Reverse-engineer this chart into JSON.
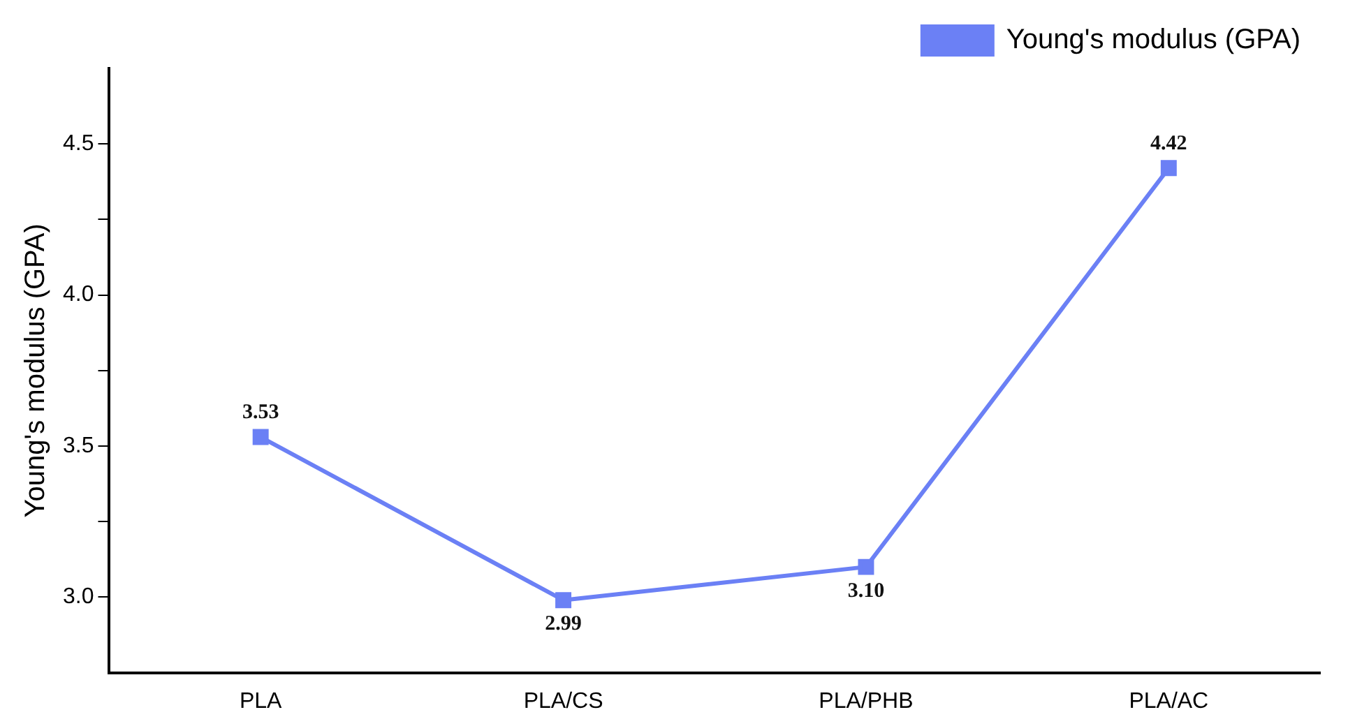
{
  "chart_data": {
    "type": "line",
    "ylabel": "Young's modulus (GPA)",
    "categories": [
      "PLA",
      "PLA/CS",
      "PLA/PHB",
      "PLA/AC"
    ],
    "series": [
      {
        "name": "Young's modulus (GPA)",
        "color": "#6b80f5",
        "values": [
          3.53,
          2.99,
          3.1,
          4.42
        ],
        "value_labels": [
          "3.53",
          "2.99",
          "3.10",
          "4.42"
        ]
      }
    ],
    "ylim": [
      2.75,
      4.75
    ],
    "yticks": [
      {
        "value": 3,
        "label": "3.0"
      },
      {
        "value": 3.25,
        "label": null
      },
      3.5,
      {
        "value": 3.75,
        "label": null
      },
      {
        "value": 4,
        "label": "4.0"
      },
      {
        "value": 4.25,
        "label": null
      },
      4.5
    ],
    "marker": "square",
    "line_style": "solid",
    "legend": "top right",
    "grid": false
  }
}
